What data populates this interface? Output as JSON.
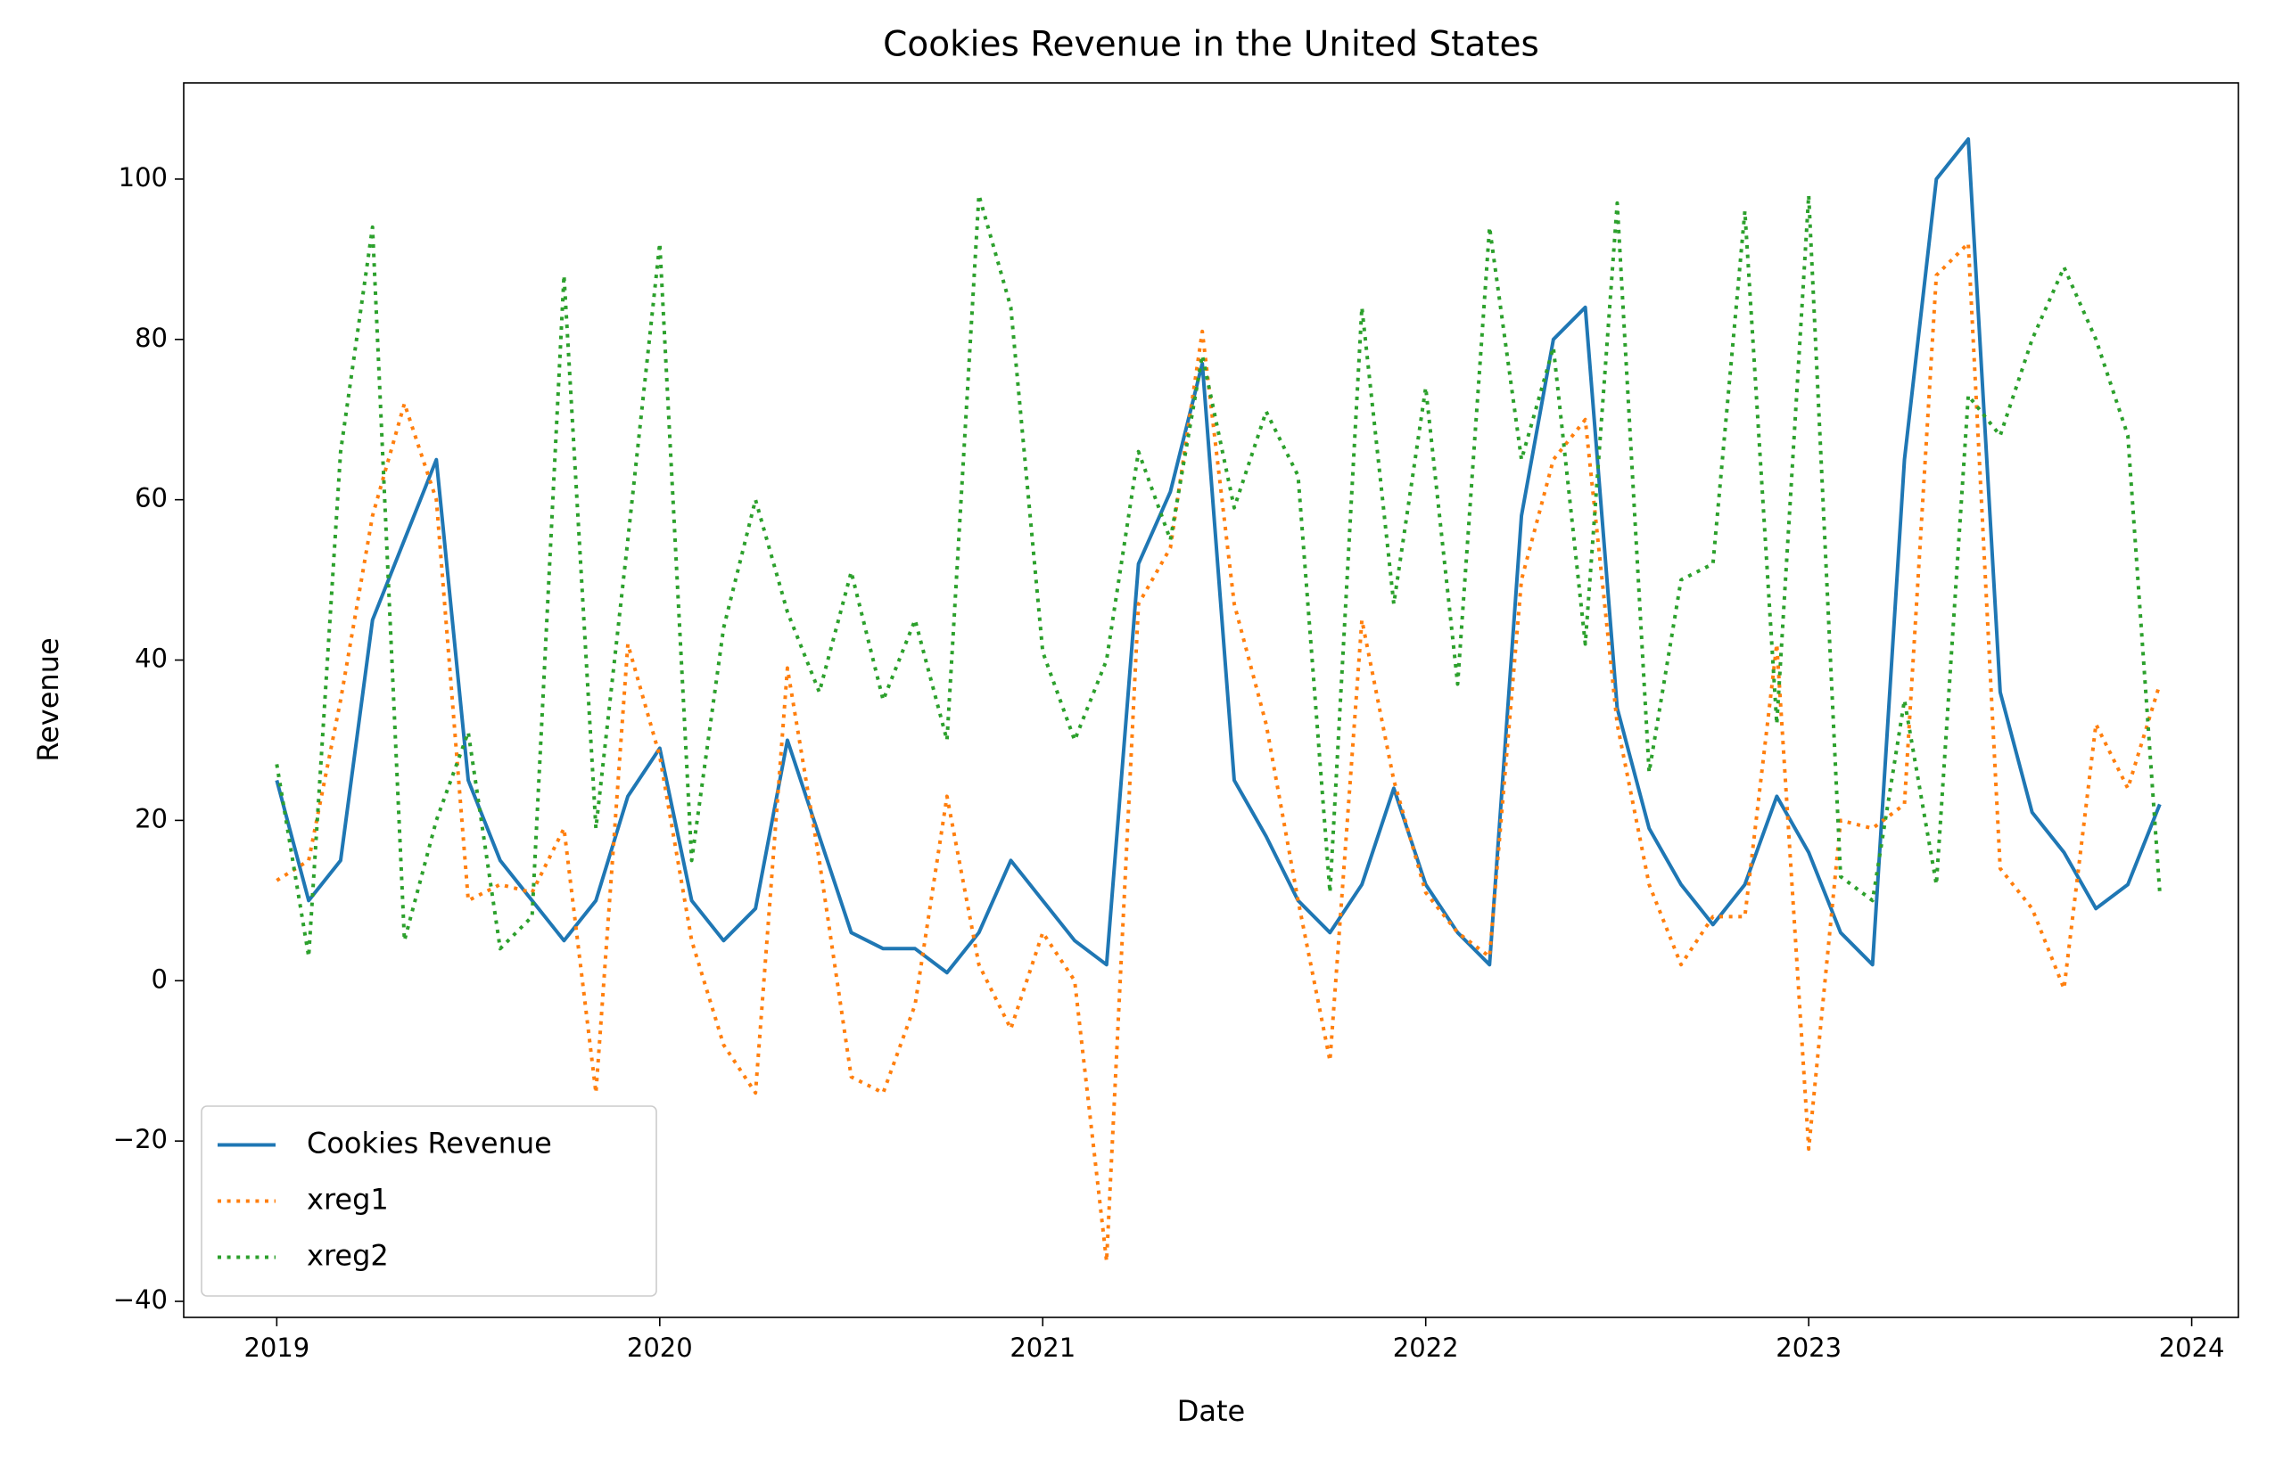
{
  "chart_data": {
    "type": "line",
    "title": "Cookies Revenue in the United States",
    "xlabel": "Date",
    "ylabel": "Revenue",
    "x": [
      "2019-01",
      "2019-02",
      "2019-03",
      "2019-04",
      "2019-05",
      "2019-06",
      "2019-07",
      "2019-08",
      "2019-09",
      "2019-10",
      "2019-11",
      "2019-12",
      "2020-01",
      "2020-02",
      "2020-03",
      "2020-04",
      "2020-05",
      "2020-06",
      "2020-07",
      "2020-08",
      "2020-09",
      "2020-10",
      "2020-11",
      "2020-12",
      "2021-01",
      "2021-02",
      "2021-03",
      "2021-04",
      "2021-05",
      "2021-06",
      "2021-07",
      "2021-08",
      "2021-09",
      "2021-10",
      "2021-11",
      "2021-12",
      "2022-01",
      "2022-02",
      "2022-03",
      "2022-04",
      "2022-05",
      "2022-06",
      "2022-07",
      "2022-08",
      "2022-09",
      "2022-10",
      "2022-11",
      "2022-12",
      "2023-01",
      "2023-02",
      "2023-03",
      "2023-04",
      "2023-05",
      "2023-06",
      "2023-07",
      "2023-08",
      "2023-09",
      "2023-10",
      "2023-11",
      "2023-12"
    ],
    "series": [
      {
        "name": "Cookies Revenue",
        "color": "#1f77b4",
        "linestyle": "solid",
        "values": [
          25,
          10,
          15,
          45,
          55,
          65,
          25,
          15,
          10,
          5,
          10,
          23,
          29,
          10,
          5,
          9,
          30,
          18,
          6,
          4,
          4,
          1,
          6,
          15,
          10,
          5,
          2,
          52,
          61,
          77,
          25,
          18,
          10,
          6,
          12,
          24,
          12,
          6,
          2,
          58,
          80,
          84,
          34,
          19,
          12,
          7,
          12,
          23,
          16,
          6,
          2,
          65,
          100,
          105,
          36,
          21,
          16,
          9,
          12,
          22
        ]
      },
      {
        "name": "xreg1",
        "color": "#ff7f0e",
        "linestyle": "dotted",
        "values": [
          12.5,
          15,
          35,
          58,
          72,
          60,
          10,
          12,
          11,
          19,
          -14,
          42,
          28,
          5,
          -8,
          -14,
          39,
          15,
          -12,
          -14,
          -3,
          23,
          2,
          -6,
          6,
          0,
          -35,
          47,
          54,
          81,
          47,
          32,
          10,
          -10,
          45,
          25,
          11,
          6,
          3,
          50,
          65,
          70,
          32,
          12,
          2,
          8,
          8,
          42,
          -21,
          20,
          19,
          22,
          88,
          92,
          14,
          9,
          -1,
          32,
          24,
          37
        ]
      },
      {
        "name": "xreg2",
        "color": "#2ca02c",
        "linestyle": "dotted",
        "values": [
          27,
          3,
          66,
          94,
          5,
          20,
          31,
          4,
          8,
          88,
          19,
          55,
          92,
          15,
          44,
          60,
          46,
          36,
          51,
          35,
          45,
          30,
          98,
          84,
          41,
          30,
          40,
          66,
          55,
          78,
          59,
          71,
          63,
          11,
          84,
          47,
          74,
          37,
          94,
          65,
          79,
          42,
          97,
          26,
          50,
          52,
          96,
          32,
          98,
          13,
          10,
          35,
          12,
          73,
          68,
          80,
          89,
          80,
          68,
          11
        ]
      }
    ],
    "xlim": [
      2018.757,
      2024.122
    ],
    "xticks": [
      2019,
      2020,
      2021,
      2022,
      2023,
      2024
    ],
    "ylim": [
      -42,
      112
    ],
    "yticks": [
      {
        "value": -40,
        "label": "−40"
      },
      {
        "value": -20,
        "label": "−20"
      },
      0,
      20,
      40,
      60,
      80,
      100
    ],
    "legend": "lower left"
  }
}
